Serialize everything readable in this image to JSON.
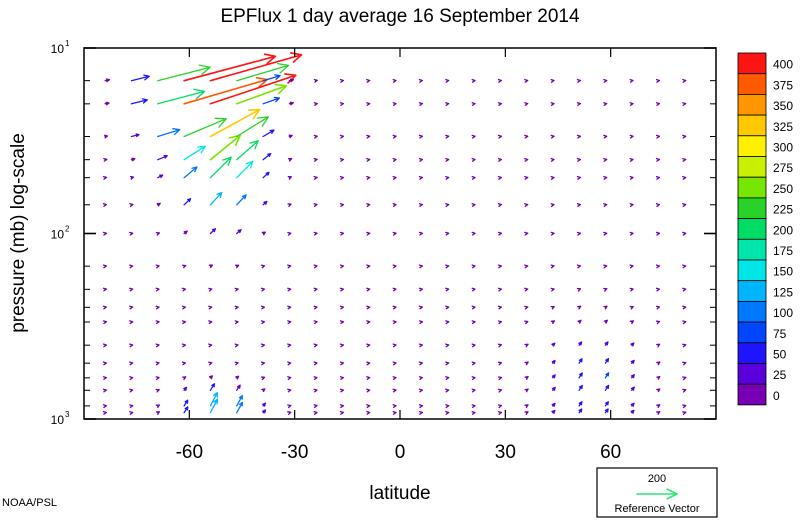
{
  "chart_data": {
    "type": "vector-field",
    "title": "EPFlux  1 day average  16 September 2014",
    "xlabel": "latitude",
    "ylabel": "pressure (mb)  log-scale",
    "xlim": [
      -90,
      90
    ],
    "ylim": [
      1000,
      10
    ],
    "yscale": "log",
    "x_ticks": [
      -60,
      -30,
      0,
      30,
      60
    ],
    "y_ticks": [
      {
        "value": 10,
        "base": "10",
        "exp": "1"
      },
      {
        "value": 100,
        "base": "10",
        "exp": "2"
      },
      {
        "value": 1000,
        "base": "10",
        "exp": "3"
      }
    ],
    "y_minor_ticks": [
      1000,
      850,
      700,
      600,
      500,
      400,
      300,
      250,
      200,
      150,
      100,
      70,
      50,
      40,
      30,
      20,
      15,
      10
    ],
    "colorbar": {
      "labels": [
        400,
        375,
        350,
        325,
        300,
        275,
        250,
        225,
        200,
        175,
        150,
        125,
        100,
        75,
        50,
        25,
        0
      ],
      "colors": [
        "#ff1414",
        "#ff5a00",
        "#ff9600",
        "#ffc800",
        "#fff000",
        "#c8f000",
        "#78e600",
        "#28d228",
        "#00dc64",
        "#00e6aa",
        "#00e6e6",
        "#00b4ff",
        "#0078ff",
        "#0046ff",
        "#1e14ff",
        "#5a00dc",
        "#7800b4"
      ]
    },
    "reference_vector": {
      "value": "200",
      "label": "Reference Vector",
      "color": "#28e678"
    },
    "grid": false,
    "legend_placement": "bottom-right"
  },
  "credit": "NOAA/PSL"
}
